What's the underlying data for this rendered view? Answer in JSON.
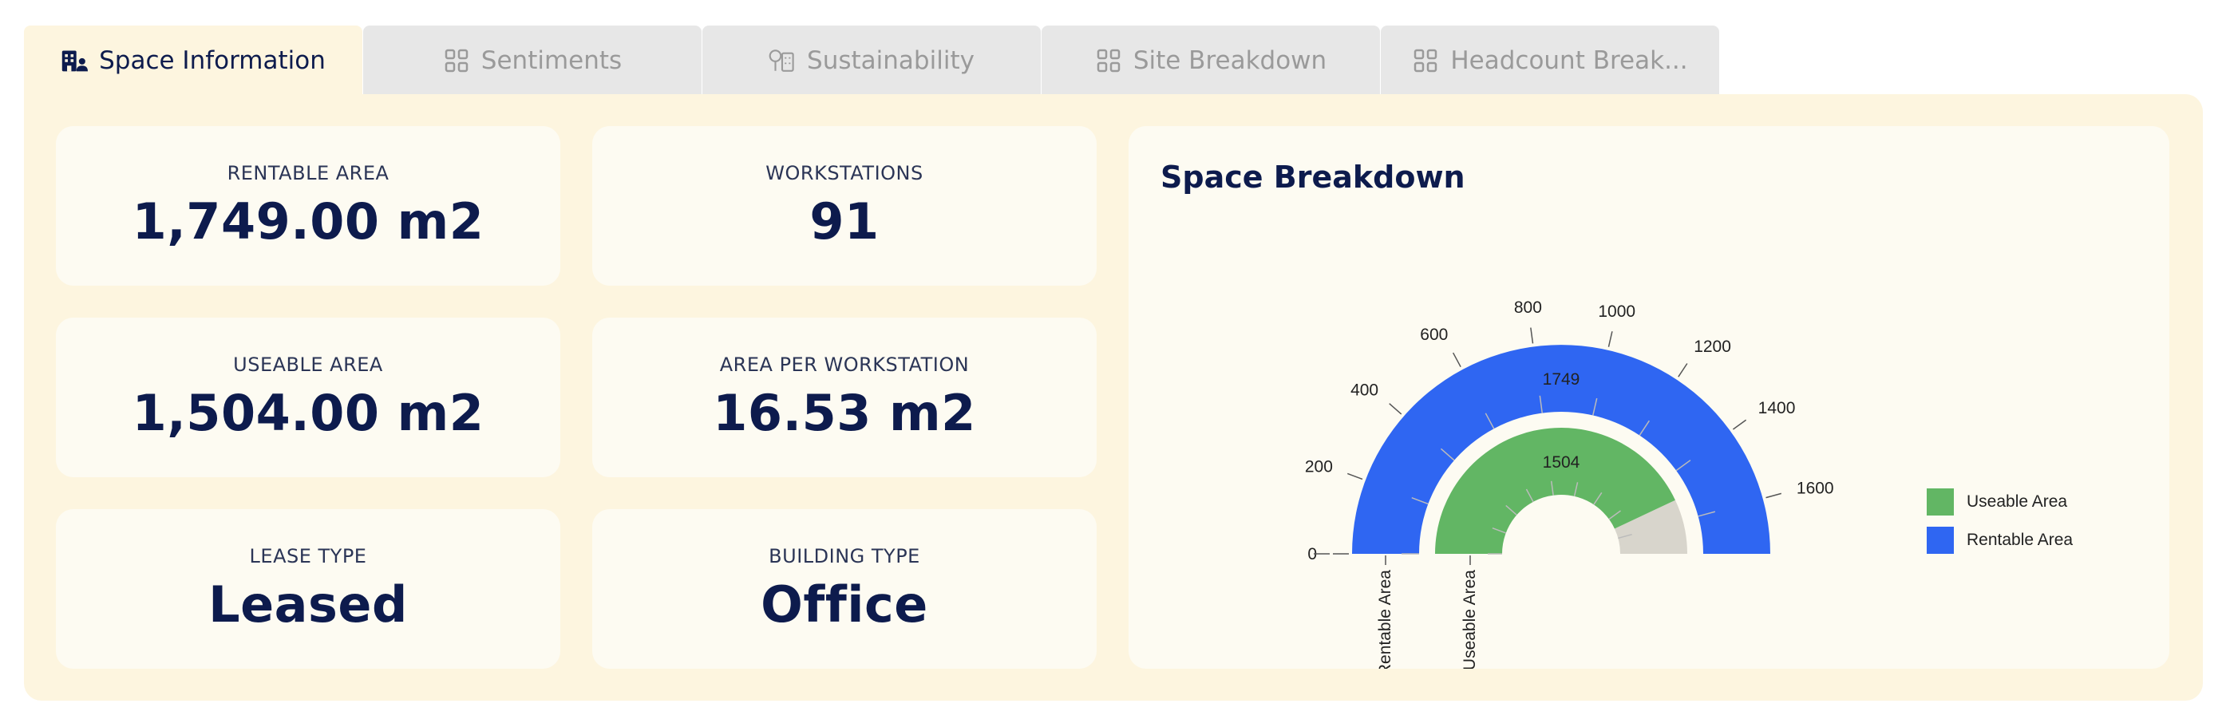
{
  "tabs": [
    {
      "label": "Space Information",
      "icon": "building-people-icon",
      "active": true
    },
    {
      "label": "Sentiments",
      "icon": "grid-icon",
      "active": false
    },
    {
      "label": "Sustainability",
      "icon": "tree-building-icon",
      "active": false
    },
    {
      "label": "Site Breakdown",
      "icon": "grid-icon",
      "active": false
    },
    {
      "label": "Headcount Break...",
      "icon": "grid-icon",
      "active": false
    }
  ],
  "cards": {
    "rentable_area": {
      "label": "RENTABLE AREA",
      "value": "1,749.00 m2"
    },
    "workstations": {
      "label": "WORKSTATIONS",
      "value": "91"
    },
    "useable_area": {
      "label": "USEABLE AREA",
      "value": "1,504.00 m2"
    },
    "area_per_workstation": {
      "label": "AREA PER WORKSTATION",
      "value": "16.53 m2"
    },
    "lease_type": {
      "label": "LEASE TYPE",
      "value": "Leased"
    },
    "building_type": {
      "label": "BUILDING TYPE",
      "value": "Office"
    }
  },
  "colors": {
    "rentable": "#2f66f2",
    "useable": "#62b664",
    "remainder": "#d8d5cc",
    "accent_text": "#0d1b4d"
  },
  "chart_data": {
    "type": "radial-bar",
    "title": "Space Breakdown",
    "max": 1749,
    "ticks": [
      0,
      200,
      400,
      600,
      800,
      1000,
      1200,
      1400,
      1600
    ],
    "series": [
      {
        "name": "Rentable Area",
        "value": 1749
      },
      {
        "name": "Useable Area",
        "value": 1504
      }
    ],
    "legend": [
      "Useable Area",
      "Rentable Area"
    ],
    "legend_position": "right"
  }
}
